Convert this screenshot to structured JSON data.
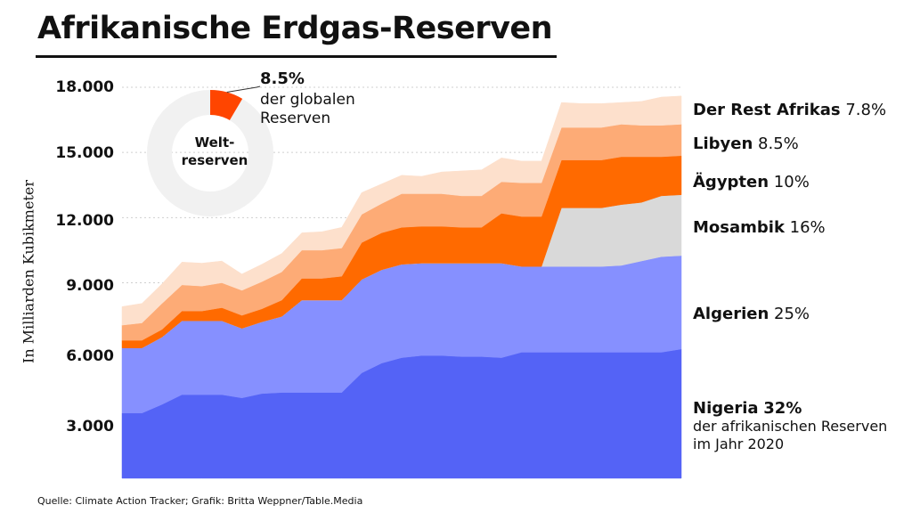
{
  "title": "Afrikanische Erdgas-Reserven",
  "source": "Quelle: Climate Action Tracker; Grafik: Britta Weppner/Table.Media",
  "donut": {
    "center_line1": "Welt-",
    "center_line2": "reserven",
    "share_label": "8.5%",
    "share_text": "der globalen Reserven",
    "share_value": 8.5,
    "colors": {
      "share": "#ff4500",
      "rest": "#f1f1f1"
    }
  },
  "chart_data": {
    "type": "area",
    "stacked": true,
    "ylabel": "In Milliarden Kubikmeter",
    "ylim": [
      0,
      18000
    ],
    "yticks": [
      3000,
      6000,
      9000,
      12000,
      15000,
      18000
    ],
    "ytick_labels": [
      "3.000",
      "6.000",
      "9.000",
      "12.000",
      "15.000",
      "18.000"
    ],
    "x": [
      1,
      2,
      3,
      4,
      5,
      6,
      7,
      8,
      9,
      10,
      11,
      12,
      13,
      14,
      15,
      16,
      17,
      18,
      19,
      20,
      21,
      22,
      23,
      24,
      25,
      26,
      27,
      28,
      29
    ],
    "series": [
      {
        "name": "Nigeria",
        "share": "32%",
        "note": "der afrikanischen Reserven im Jahr 2020",
        "color": "#5463f6",
        "values": [
          3000,
          3000,
          3400,
          3850,
          3850,
          3850,
          3700,
          3900,
          3950,
          3950,
          3950,
          3950,
          4850,
          5300,
          5550,
          5650,
          5650,
          5600,
          5600,
          5550,
          5800,
          5800,
          5800,
          5800,
          5800,
          5800,
          5800,
          5800,
          5950
        ]
      },
      {
        "name": "Algerien",
        "share": "25%",
        "color": "#8690ff",
        "values": [
          3000,
          3000,
          3100,
          3400,
          3400,
          3400,
          3200,
          3300,
          3500,
          4250,
          4250,
          4250,
          4300,
          4300,
          4300,
          4250,
          4250,
          4300,
          4300,
          4350,
          3950,
          3950,
          3950,
          3950,
          3950,
          4000,
          4200,
          4400,
          4300
        ]
      },
      {
        "name": "Mosambik",
        "share": "16%",
        "color": "#d9d9d9",
        "values": [
          0,
          0,
          0,
          0,
          0,
          0,
          0,
          0,
          0,
          0,
          0,
          0,
          0,
          0,
          0,
          0,
          0,
          0,
          0,
          0,
          0,
          0,
          2700,
          2700,
          2700,
          2800,
          2700,
          2800,
          2800
        ]
      },
      {
        "name": "Ägypten",
        "share": "10%",
        "color": "#ff6a00",
        "values": [
          350,
          350,
          350,
          450,
          450,
          600,
          600,
          600,
          750,
          1000,
          1000,
          1100,
          1700,
          1700,
          1700,
          1700,
          1700,
          1650,
          1650,
          2300,
          2300,
          2300,
          2200,
          2200,
          2200,
          2200,
          2100,
          1800,
          1800
        ]
      },
      {
        "name": "Libyen",
        "share": "8.5%",
        "color": "#fdab76",
        "values": [
          700,
          800,
          1200,
          1200,
          1150,
          1150,
          1150,
          1250,
          1300,
          1300,
          1300,
          1300,
          1300,
          1350,
          1550,
          1500,
          1500,
          1450,
          1450,
          1450,
          1550,
          1550,
          1500,
          1500,
          1500,
          1500,
          1450,
          1450,
          1450
        ]
      },
      {
        "name": "Der Rest Afrikas",
        "share": "7.8%",
        "color": "#fde0cc",
        "values": [
          850,
          900,
          900,
          1050,
          1050,
          1000,
          750,
          800,
          850,
          800,
          850,
          950,
          1000,
          900,
          850,
          800,
          1000,
          1150,
          1200,
          1100,
          1000,
          1000,
          1150,
          1100,
          1100,
          1000,
          1100,
          1300,
          1300
        ]
      }
    ]
  }
}
